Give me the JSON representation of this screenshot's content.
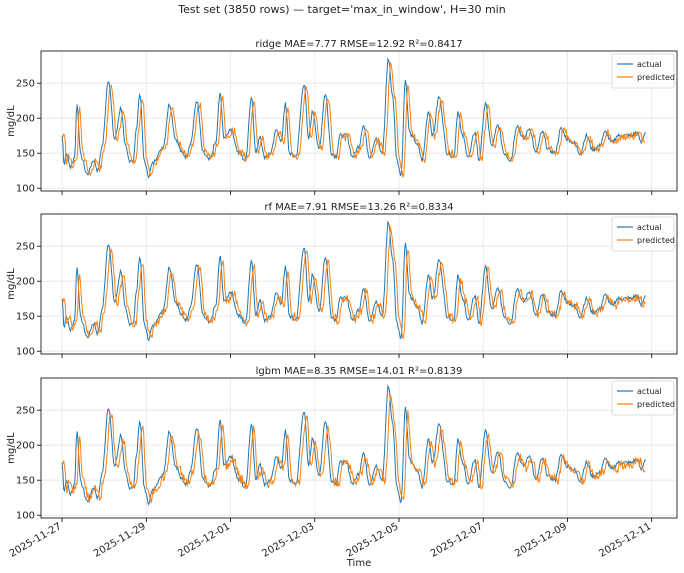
{
  "figure": {
    "suptitle": "Test set (3850 rows) — target='max_in_window', H=30 min",
    "xlabel": "Time"
  },
  "chart_data": [
    {
      "type": "line",
      "title": "ridge  MAE=7.77  RMSE=12.92  R²=0.8417",
      "ylabel": "mg/dL",
      "ylim": [
        96,
        296
      ],
      "yticks": [
        100,
        150,
        200,
        250
      ],
      "xlim_days": [
        -0.5,
        14.6
      ],
      "x_tick_labels": [
        "2025-11-27",
        "2025-11-29",
        "2025-12-01",
        "2025-12-03",
        "2025-12-05",
        "2025-12-07",
        "2025-12-09",
        "2025-12-11"
      ],
      "x_tick_days": [
        0,
        2,
        4,
        6,
        8,
        10,
        12,
        14
      ],
      "grid": true,
      "legend": "top-right",
      "series": [
        {
          "name": "actual",
          "color": "#1f77b4"
        },
        {
          "name": "predicted",
          "color": "#ff7f0e",
          "noise": 4,
          "peak_scale": 0.95
        }
      ],
      "approx_actual_points": {
        "x_days": [
          0,
          0.05,
          0.1,
          0.2,
          0.3,
          0.35,
          0.45,
          0.6,
          0.75,
          0.85,
          0.95,
          1.1,
          1.25,
          1.4,
          1.5,
          1.6,
          1.7,
          1.75,
          1.85,
          1.95,
          2.05,
          2.15,
          2.3,
          2.4,
          2.55,
          2.7,
          2.85,
          2.95,
          3.05,
          3.2,
          3.35,
          3.5,
          3.65,
          3.75,
          3.85,
          4.0,
          4.2,
          4.35,
          4.5,
          4.6,
          4.7,
          4.8,
          4.95,
          5.1,
          5.2,
          5.3,
          5.4,
          5.55,
          5.75,
          5.85,
          5.95,
          6.1,
          6.25,
          6.4,
          6.5,
          6.6,
          6.75,
          6.9,
          7.05,
          7.15,
          7.3,
          7.45,
          7.6,
          7.75,
          7.85,
          7.95,
          8.05,
          8.15,
          8.25,
          8.35,
          8.45,
          8.55,
          8.7,
          8.8,
          8.95,
          9.15,
          9.3,
          9.4,
          9.5,
          9.65,
          9.8,
          9.9,
          10.05,
          10.2,
          10.35,
          10.5,
          10.65,
          10.8,
          10.95,
          11.1,
          11.25,
          11.4,
          11.55,
          11.7,
          11.85,
          12.0,
          12.15,
          12.3,
          12.45,
          12.6,
          12.75,
          12.9,
          13.05,
          13.2,
          13.35,
          13.5,
          13.65,
          13.75,
          13.85
        ],
        "y": [
          175,
          135,
          150,
          130,
          145,
          220,
          145,
          120,
          140,
          125,
          160,
          255,
          170,
          215,
          160,
          140,
          140,
          180,
          235,
          140,
          118,
          135,
          150,
          160,
          220,
          170,
          150,
          145,
          165,
          225,
          150,
          140,
          165,
          235,
          170,
          185,
          150,
          140,
          230,
          150,
          175,
          145,
          150,
          185,
          165,
          220,
          150,
          145,
          250,
          170,
          210,
          155,
          235,
          150,
          145,
          175,
          175,
          145,
          160,
          190,
          145,
          170,
          150,
          285,
          230,
          140,
          120,
          255,
          180,
          170,
          160,
          140,
          210,
          175,
          230,
          150,
          145,
          210,
          175,
          145,
          180,
          140,
          220,
          160,
          190,
          150,
          140,
          190,
          170,
          185,
          150,
          180,
          155,
          150,
          185,
          170,
          165,
          150,
          175,
          155,
          160,
          180,
          165,
          175,
          175,
          175,
          180,
          165,
          180
        ]
      }
    },
    {
      "type": "line",
      "title": "rf  MAE=7.91  RMSE=13.26  R²=0.8334",
      "ylabel": "mg/dL",
      "ylim": [
        96,
        296
      ],
      "yticks": [
        100,
        150,
        200,
        250
      ],
      "xlim_days": [
        -0.5,
        14.6
      ],
      "x_tick_labels": [
        "2025-11-27",
        "2025-11-29",
        "2025-12-01",
        "2025-12-03",
        "2025-12-05",
        "2025-12-07",
        "2025-12-09",
        "2025-12-11"
      ],
      "x_tick_days": [
        0,
        2,
        4,
        6,
        8,
        10,
        12,
        14
      ],
      "grid": true,
      "legend": "top-right",
      "series": [
        {
          "name": "actual",
          "color": "#1f77b4"
        },
        {
          "name": "predicted",
          "color": "#ff7f0e",
          "noise": 5,
          "peak_scale": 0.93
        }
      ]
    },
    {
      "type": "line",
      "title": "lgbm  MAE=8.35  RMSE=14.01  R²=0.8139",
      "ylabel": "mg/dL",
      "ylim": [
        96,
        296
      ],
      "yticks": [
        100,
        150,
        200,
        250
      ],
      "xlim_days": [
        -0.5,
        14.6
      ],
      "x_tick_labels": [
        "2025-11-27",
        "2025-11-29",
        "2025-12-01",
        "2025-12-03",
        "2025-12-05",
        "2025-12-07",
        "2025-12-09",
        "2025-12-11"
      ],
      "x_tick_days": [
        0,
        2,
        4,
        6,
        8,
        10,
        12,
        14
      ],
      "grid": true,
      "legend": "top-right",
      "series": [
        {
          "name": "actual",
          "color": "#1f77b4"
        },
        {
          "name": "predicted",
          "color": "#ff7f0e",
          "noise": 6,
          "peak_scale": 0.9
        }
      ]
    }
  ]
}
